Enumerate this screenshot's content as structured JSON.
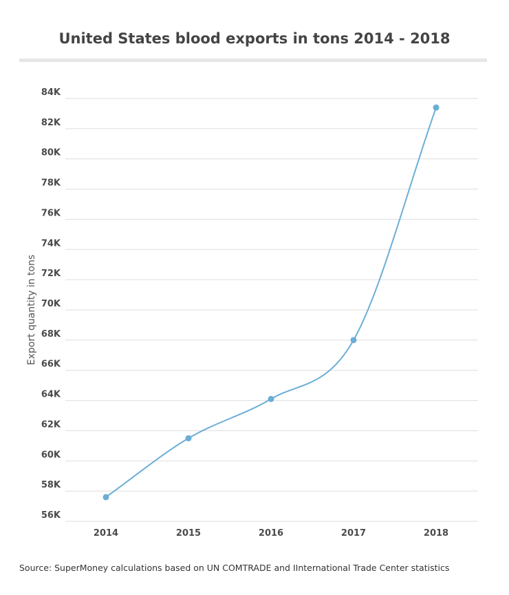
{
  "chart_data": {
    "type": "line",
    "title": "United States blood exports in tons 2014 - 2018",
    "xlabel": "",
    "ylabel": "Export quantity in tons",
    "categories": [
      "2014",
      "2015",
      "2016",
      "2017",
      "2018"
    ],
    "series": [
      {
        "values": [
          57600,
          61500,
          64100,
          68000,
          83400
        ]
      }
    ],
    "ylim": [
      56000,
      84000
    ],
    "yticks": [
      56000,
      58000,
      60000,
      62000,
      64000,
      66000,
      68000,
      70000,
      72000,
      74000,
      76000,
      78000,
      80000,
      82000,
      84000
    ],
    "ytick_labels": [
      "56K",
      "58K",
      "60K",
      "62K",
      "64K",
      "66K",
      "68K",
      "70K",
      "72K",
      "74K",
      "76K",
      "78K",
      "80K",
      "82K",
      "84K"
    ],
    "grid": true,
    "line_color": "#6baed6",
    "grid_color": "#dddddd",
    "source": "Source:  SuperMoney calculations based on UN COMTRADE and IInternational Trade Center statistics"
  }
}
